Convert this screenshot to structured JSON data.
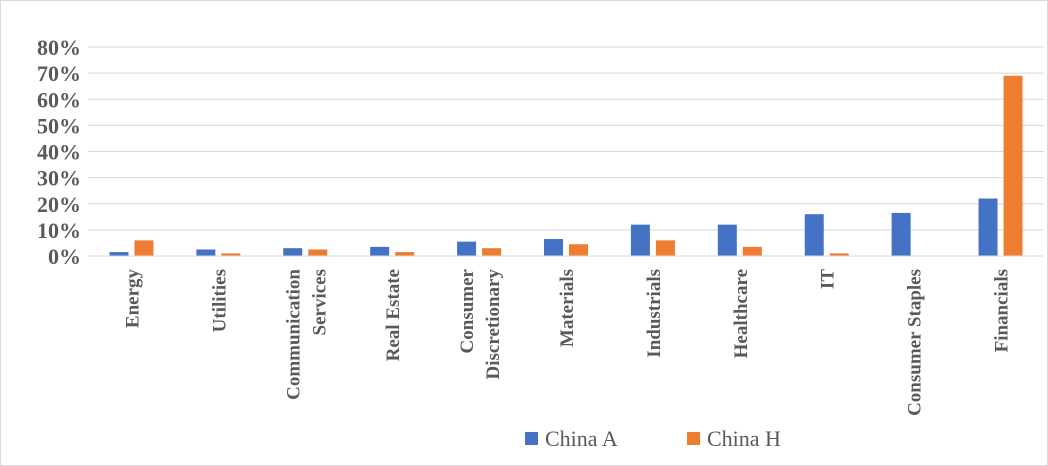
{
  "chart_data": {
    "type": "bar",
    "categories": [
      [
        "Energy"
      ],
      [
        "Utilities"
      ],
      [
        "Communication",
        "Services"
      ],
      [
        "Real Estate"
      ],
      [
        "Consumer",
        "Discretionary"
      ],
      [
        "Materials"
      ],
      [
        "Industrials"
      ],
      [
        "Healthcare"
      ],
      [
        "IT"
      ],
      [
        "Consumer Staples"
      ],
      [
        "Financials"
      ]
    ],
    "series": [
      {
        "name": "China A",
        "color": "#4472c4",
        "values": [
          1.5,
          2.5,
          3.0,
          3.5,
          5.5,
          6.5,
          12.0,
          12.0,
          16.0,
          16.5,
          22.0
        ]
      },
      {
        "name": "China H",
        "color": "#ed7d31",
        "values": [
          6.0,
          1.0,
          2.5,
          1.5,
          3.0,
          4.5,
          6.0,
          3.5,
          1.0,
          0.0,
          69.0
        ]
      }
    ],
    "title": "",
    "xlabel": "",
    "ylabel": "",
    "ylim": [
      0,
      80
    ],
    "yticks": [
      "0%",
      "10%",
      "20%",
      "30%",
      "40%",
      "50%",
      "60%",
      "70%",
      "80%"
    ],
    "grid": true,
    "legend_position": "bottom"
  }
}
